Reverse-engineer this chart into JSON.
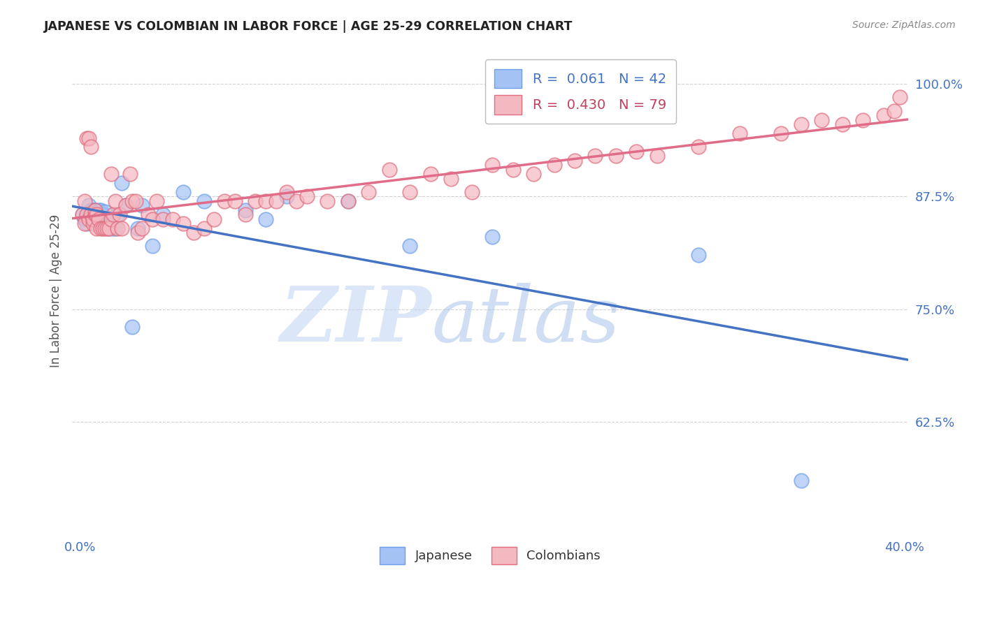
{
  "title": "JAPANESE VS COLOMBIAN IN LABOR FORCE | AGE 25-29 CORRELATION CHART",
  "source": "Source: ZipAtlas.com",
  "ylabel": "In Labor Force | Age 25-29",
  "ytick_labels": [
    "100.0%",
    "87.5%",
    "75.0%",
    "62.5%"
  ],
  "ytick_values": [
    1.0,
    0.875,
    0.75,
    0.625
  ],
  "xlim": [
    -0.004,
    0.402
  ],
  "ylim": [
    0.5,
    1.04
  ],
  "japanese_color_face": "#a4c2f4",
  "japanese_color_edge": "#6d9eeb",
  "colombian_color_face": "#f4b8c1",
  "colombian_color_edge": "#e06c7d",
  "trend_japanese_color": "#4472c4",
  "trend_colombian_color": "#e06c88",
  "japanese_x": [
    0.001,
    0.002,
    0.003,
    0.003,
    0.004,
    0.004,
    0.005,
    0.005,
    0.006,
    0.006,
    0.007,
    0.007,
    0.008,
    0.008,
    0.009,
    0.009,
    0.01,
    0.011,
    0.012,
    0.013,
    0.014,
    0.015,
    0.016,
    0.017,
    0.018,
    0.02,
    0.022,
    0.025,
    0.028,
    0.03,
    0.035,
    0.04,
    0.05,
    0.06,
    0.08,
    0.09,
    0.1,
    0.13,
    0.16,
    0.2,
    0.3,
    0.35
  ],
  "japanese_y": [
    0.855,
    0.85,
    0.845,
    0.855,
    0.855,
    0.865,
    0.855,
    0.86,
    0.86,
    0.85,
    0.855,
    0.86,
    0.85,
    0.855,
    0.85,
    0.86,
    0.86,
    0.855,
    0.858,
    0.85,
    0.84,
    0.85,
    0.84,
    0.84,
    0.855,
    0.89,
    0.865,
    0.73,
    0.84,
    0.865,
    0.82,
    0.855,
    0.88,
    0.87,
    0.86,
    0.85,
    0.875,
    0.87,
    0.82,
    0.83,
    0.81,
    0.56
  ],
  "colombian_x": [
    0.001,
    0.002,
    0.002,
    0.003,
    0.003,
    0.004,
    0.004,
    0.005,
    0.005,
    0.006,
    0.006,
    0.007,
    0.007,
    0.008,
    0.008,
    0.009,
    0.01,
    0.011,
    0.012,
    0.013,
    0.014,
    0.015,
    0.015,
    0.016,
    0.017,
    0.018,
    0.019,
    0.02,
    0.022,
    0.024,
    0.025,
    0.027,
    0.028,
    0.03,
    0.033,
    0.035,
    0.037,
    0.04,
    0.045,
    0.05,
    0.055,
    0.06,
    0.065,
    0.07,
    0.075,
    0.08,
    0.085,
    0.09,
    0.095,
    0.1,
    0.105,
    0.11,
    0.12,
    0.13,
    0.14,
    0.15,
    0.16,
    0.17,
    0.18,
    0.19,
    0.2,
    0.21,
    0.22,
    0.23,
    0.24,
    0.25,
    0.26,
    0.27,
    0.28,
    0.3,
    0.32,
    0.34,
    0.35,
    0.36,
    0.37,
    0.38,
    0.39,
    0.395,
    0.398
  ],
  "colombian_y": [
    0.855,
    0.845,
    0.87,
    0.855,
    0.94,
    0.85,
    0.94,
    0.855,
    0.93,
    0.845,
    0.85,
    0.855,
    0.86,
    0.84,
    0.855,
    0.85,
    0.84,
    0.84,
    0.84,
    0.84,
    0.84,
    0.85,
    0.9,
    0.855,
    0.87,
    0.84,
    0.855,
    0.84,
    0.865,
    0.9,
    0.87,
    0.87,
    0.835,
    0.84,
    0.855,
    0.85,
    0.87,
    0.85,
    0.85,
    0.845,
    0.835,
    0.84,
    0.85,
    0.87,
    0.87,
    0.855,
    0.87,
    0.87,
    0.87,
    0.88,
    0.87,
    0.875,
    0.87,
    0.87,
    0.88,
    0.905,
    0.88,
    0.9,
    0.895,
    0.88,
    0.91,
    0.905,
    0.9,
    0.91,
    0.915,
    0.92,
    0.92,
    0.925,
    0.92,
    0.93,
    0.945,
    0.945,
    0.955,
    0.96,
    0.955,
    0.96,
    0.965,
    0.97,
    0.985
  ]
}
